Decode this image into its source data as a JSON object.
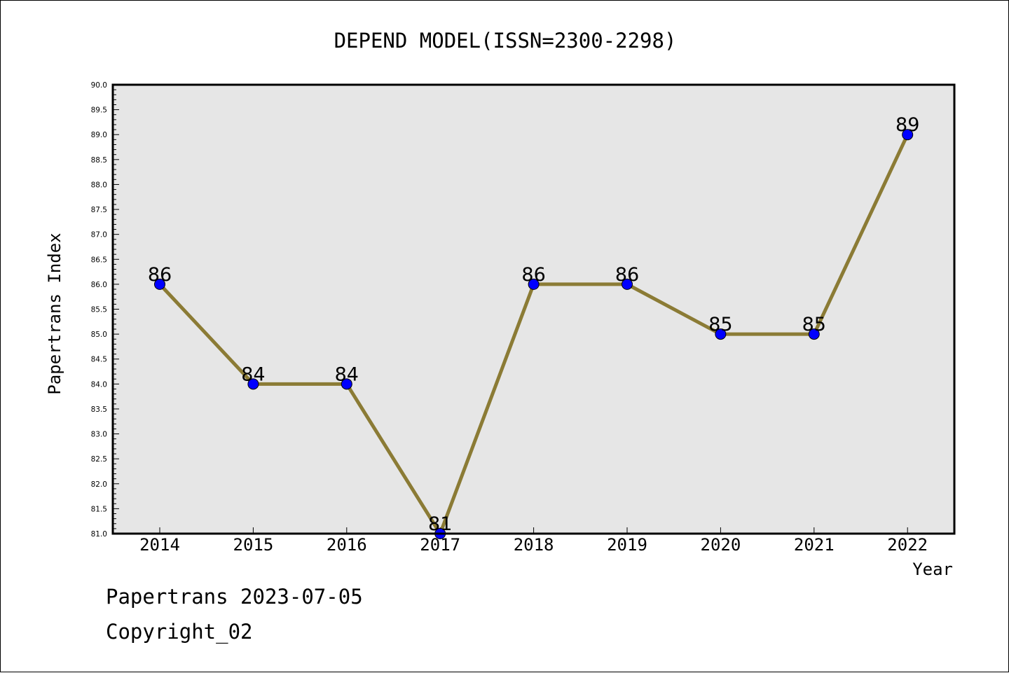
{
  "chart_data": {
    "type": "line",
    "title": "DEPEND MODEL(ISSN=2300-2298)",
    "xlabel": "Year",
    "ylabel": "Papertrans Index",
    "categories": [
      "2014",
      "2015",
      "2016",
      "2017",
      "2018",
      "2019",
      "2020",
      "2021",
      "2022"
    ],
    "series": [
      {
        "values": [
          86,
          84,
          84,
          81,
          86,
          86,
          85,
          85,
          89
        ],
        "data_labels": [
          "86",
          "84",
          "84",
          "81",
          "86",
          "86",
          "85",
          "85",
          "89"
        ]
      }
    ],
    "ylim": [
      81.0,
      90.0
    ],
    "y_ticks": [
      "81.0",
      "81.5",
      "82.0",
      "82.5",
      "83.0",
      "83.5",
      "84.0",
      "84.5",
      "85.0",
      "85.5",
      "86.0",
      "86.5",
      "87.0",
      "87.5",
      "88.0",
      "88.5",
      "89.0",
      "89.5",
      "90.0"
    ],
    "y_minor_step": 0.1,
    "grid": false,
    "legend": "none",
    "colors": {
      "line": "#8B7B35",
      "marker": "#0000FF",
      "plot_background": "#E6E6E6"
    }
  },
  "footer": {
    "line1": "Papertrans 2023-07-05",
    "line2": "Copyright_02"
  }
}
